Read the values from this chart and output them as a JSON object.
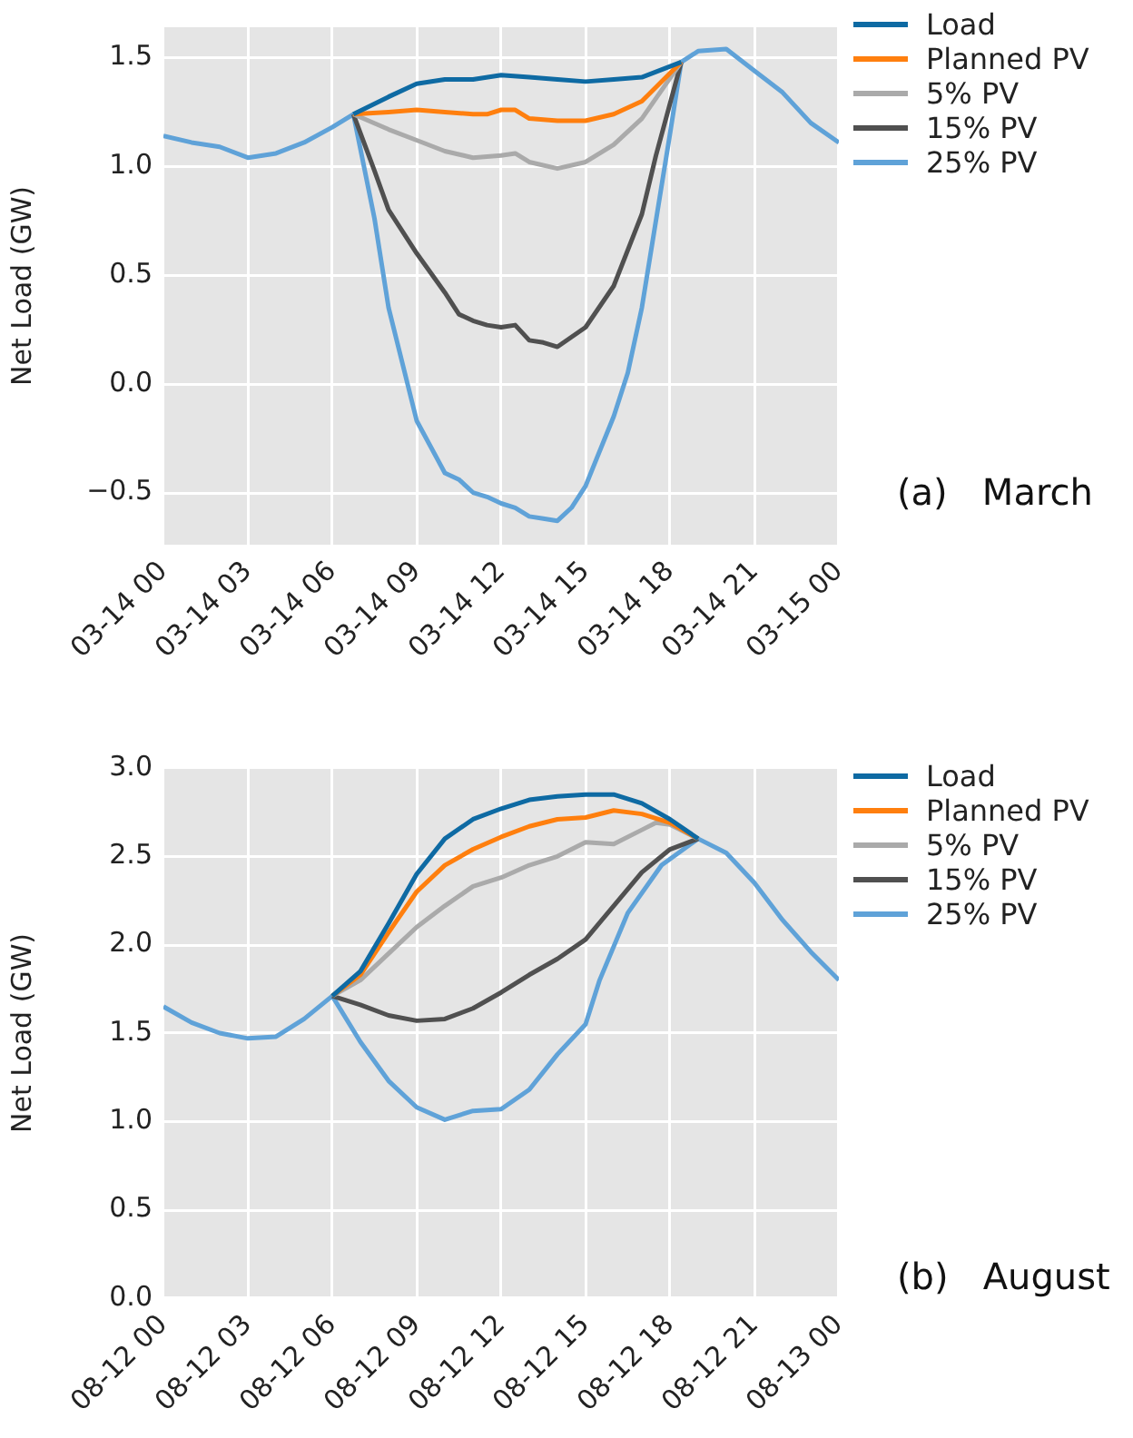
{
  "chart_data": [
    {
      "type": "line",
      "ylabel": "Net Load (GW)",
      "annotations": [
        "(a)   March"
      ],
      "legend": "top right",
      "grid": true,
      "xlim": [
        "--03-14T00:00",
        "--03-15T00:00"
      ],
      "xticks": [
        {
          "value": "--03-14T00:00",
          "label": "03-14 00"
        },
        {
          "value": "--03-14T03:00",
          "label": "03-14 03"
        },
        {
          "value": "--03-14T06:00",
          "label": "03-14 06"
        },
        {
          "value": "--03-14T09:00",
          "label": "03-14 09"
        },
        {
          "value": "--03-14T12:00",
          "label": "03-14 12"
        },
        {
          "value": "--03-14T15:00",
          "label": "03-14 15"
        },
        {
          "value": "--03-14T18:00",
          "label": "03-14 18"
        },
        {
          "value": "--03-14T21:00",
          "label": "03-14 21"
        },
        {
          "value": "--03-15T00:00",
          "label": "03-15 00"
        }
      ],
      "ylim": [
        -0.74,
        1.64
      ],
      "yticks": [
        {
          "value": -0.5,
          "label": "−0.5"
        },
        {
          "value": 0,
          "label": "0.0"
        },
        {
          "value": 0.5,
          "label": "0.5"
        },
        {
          "value": 1,
          "label": "1.0"
        },
        {
          "value": 1.5,
          "label": "1.5"
        }
      ],
      "series": [
        {
          "name": "Load",
          "color": "#0e6aa3",
          "x": [
            "--03-14T06:45",
            "--03-14T08:00",
            "--03-14T09:00",
            "--03-14T10:00",
            "--03-14T11:00",
            "--03-14T12:00",
            "--03-14T13:00",
            "--03-14T14:00",
            "--03-14T15:00",
            "--03-14T16:00",
            "--03-14T17:00",
            "--03-14T18:24"
          ],
          "values": [
            1.24,
            1.32,
            1.38,
            1.4,
            1.4,
            1.42,
            1.41,
            1.4,
            1.39,
            1.4,
            1.41,
            1.48
          ]
        },
        {
          "name": "Planned PV",
          "color": "#ff7f0e",
          "x": [
            "--03-14T06:45",
            "--03-14T08:00",
            "--03-14T09:00",
            "--03-14T10:00",
            "--03-14T11:00",
            "--03-14T11:30",
            "--03-14T12:00",
            "--03-14T12:30",
            "--03-14T13:00",
            "--03-14T14:00",
            "--03-14T15:00",
            "--03-14T16:00",
            "--03-14T17:00",
            "--03-14T18:24"
          ],
          "values": [
            1.24,
            1.25,
            1.26,
            1.25,
            1.24,
            1.24,
            1.26,
            1.26,
            1.22,
            1.21,
            1.21,
            1.24,
            1.3,
            1.48
          ]
        },
        {
          "name": "5% PV",
          "color": "#aaaaaa",
          "x": [
            "--03-14T06:45",
            "--03-14T08:00",
            "--03-14T09:00",
            "--03-14T10:00",
            "--03-14T11:00",
            "--03-14T12:00",
            "--03-14T12:30",
            "--03-14T13:00",
            "--03-14T14:00",
            "--03-14T15:00",
            "--03-14T16:00",
            "--03-14T17:00",
            "--03-14T18:24"
          ],
          "values": [
            1.24,
            1.17,
            1.12,
            1.07,
            1.04,
            1.05,
            1.06,
            1.02,
            0.99,
            1.02,
            1.1,
            1.22,
            1.48
          ]
        },
        {
          "name": "15% PV",
          "color": "#505050",
          "x": [
            "--03-14T06:45",
            "--03-14T07:30",
            "--03-14T08:00",
            "--03-14T09:00",
            "--03-14T10:00",
            "--03-14T10:30",
            "--03-14T11:00",
            "--03-14T11:30",
            "--03-14T12:00",
            "--03-14T12:30",
            "--03-14T13:00",
            "--03-14T13:30",
            "--03-14T14:00",
            "--03-14T15:00",
            "--03-14T16:00",
            "--03-14T17:00",
            "--03-14T17:30",
            "--03-14T18:24"
          ],
          "values": [
            1.24,
            0.98,
            0.8,
            0.6,
            0.42,
            0.32,
            0.29,
            0.27,
            0.26,
            0.27,
            0.2,
            0.19,
            0.17,
            0.26,
            0.45,
            0.78,
            1.05,
            1.48
          ]
        },
        {
          "name": "25% PV",
          "color": "#5fa2d8",
          "x": [
            "--03-14T00:00",
            "--03-14T01:00",
            "--03-14T02:00",
            "--03-14T03:00",
            "--03-14T04:00",
            "--03-14T05:00",
            "--03-14T06:00",
            "--03-14T06:45",
            "--03-14T07:30",
            "--03-14T08:00",
            "--03-14T09:00",
            "--03-14T10:00",
            "--03-14T10:30",
            "--03-14T11:00",
            "--03-14T11:30",
            "--03-14T12:00",
            "--03-14T12:30",
            "--03-14T13:00",
            "--03-14T13:30",
            "--03-14T14:00",
            "--03-14T14:30",
            "--03-14T15:00",
            "--03-14T16:00",
            "--03-14T16:30",
            "--03-14T17:00",
            "--03-14T17:30",
            "--03-14T18:00",
            "--03-14T18:24",
            "--03-14T19:00",
            "--03-14T20:00",
            "--03-14T21:00",
            "--03-14T22:00",
            "--03-14T23:00",
            "--03-15T00:00"
          ],
          "values": [
            1.14,
            1.11,
            1.09,
            1.04,
            1.06,
            1.11,
            1.18,
            1.24,
            0.76,
            0.35,
            -0.17,
            -0.41,
            -0.44,
            -0.5,
            -0.52,
            -0.55,
            -0.57,
            -0.61,
            -0.62,
            -0.63,
            -0.57,
            -0.47,
            -0.15,
            0.05,
            0.35,
            0.75,
            1.15,
            1.48,
            1.53,
            1.54,
            1.44,
            1.34,
            1.2,
            1.11
          ]
        }
      ]
    },
    {
      "type": "line",
      "ylabel": "Net Load (GW)",
      "annotations": [
        "(b)   August"
      ],
      "legend": "top right",
      "grid": true,
      "xlim": [
        "--08-12T00:00",
        "--08-13T00:00"
      ],
      "xticks": [
        {
          "value": "--08-12T00:00",
          "label": "08-12 00"
        },
        {
          "value": "--08-12T03:00",
          "label": "08-12 03"
        },
        {
          "value": "--08-12T06:00",
          "label": "08-12 06"
        },
        {
          "value": "--08-12T09:00",
          "label": "08-12 09"
        },
        {
          "value": "--08-12T12:00",
          "label": "08-12 12"
        },
        {
          "value": "--08-12T15:00",
          "label": "08-12 15"
        },
        {
          "value": "--08-12T18:00",
          "label": "08-12 18"
        },
        {
          "value": "--08-12T21:00",
          "label": "08-12 21"
        },
        {
          "value": "--08-13T00:00",
          "label": "08-13 00"
        }
      ],
      "ylim": [
        0,
        3
      ],
      "yticks": [
        {
          "value": 0,
          "label": "0.0"
        },
        {
          "value": 0.5,
          "label": "0.5"
        },
        {
          "value": 1,
          "label": "1.0"
        },
        {
          "value": 1.5,
          "label": "1.5"
        },
        {
          "value": 2,
          "label": "2.0"
        },
        {
          "value": 2.5,
          "label": "2.5"
        },
        {
          "value": 3,
          "label": "3.0"
        }
      ],
      "series": [
        {
          "name": "Load",
          "color": "#0e6aa3",
          "x": [
            "--08-12T06:00",
            "--08-12T07:00",
            "--08-12T08:00",
            "--08-12T09:00",
            "--08-12T10:00",
            "--08-12T11:00",
            "--08-12T12:00",
            "--08-12T13:00",
            "--08-12T14:00",
            "--08-12T15:00",
            "--08-12T16:00",
            "--08-12T17:00",
            "--08-12T18:00",
            "--08-12T19:00"
          ],
          "values": [
            1.71,
            1.85,
            2.12,
            2.4,
            2.6,
            2.71,
            2.77,
            2.82,
            2.84,
            2.85,
            2.85,
            2.8,
            2.71,
            2.6
          ]
        },
        {
          "name": "Planned PV",
          "color": "#ff7f0e",
          "x": [
            "--08-12T06:00",
            "--08-12T07:00",
            "--08-12T08:00",
            "--08-12T09:00",
            "--08-12T10:00",
            "--08-12T11:00",
            "--08-12T12:00",
            "--08-12T13:00",
            "--08-12T14:00",
            "--08-12T15:00",
            "--08-12T16:00",
            "--08-12T17:00",
            "--08-12T18:00",
            "--08-12T19:00"
          ],
          "values": [
            1.71,
            1.83,
            2.07,
            2.3,
            2.45,
            2.54,
            2.61,
            2.67,
            2.71,
            2.72,
            2.76,
            2.74,
            2.69,
            2.6
          ]
        },
        {
          "name": "5% PV",
          "color": "#aaaaaa",
          "x": [
            "--08-12T06:00",
            "--08-12T07:00",
            "--08-12T08:00",
            "--08-12T09:00",
            "--08-12T10:00",
            "--08-12T11:00",
            "--08-12T12:00",
            "--08-12T13:00",
            "--08-12T14:00",
            "--08-12T15:00",
            "--08-12T16:00",
            "--08-12T17:00",
            "--08-12T17:30",
            "--08-12T18:00",
            "--08-12T19:00"
          ],
          "values": [
            1.71,
            1.8,
            1.95,
            2.1,
            2.22,
            2.33,
            2.38,
            2.45,
            2.5,
            2.58,
            2.57,
            2.65,
            2.69,
            2.68,
            2.6
          ]
        },
        {
          "name": "15% PV",
          "color": "#505050",
          "x": [
            "--08-12T06:00",
            "--08-12T07:00",
            "--08-12T08:00",
            "--08-12T09:00",
            "--08-12T10:00",
            "--08-12T11:00",
            "--08-12T12:00",
            "--08-12T13:00",
            "--08-12T14:00",
            "--08-12T15:00",
            "--08-12T16:00",
            "--08-12T17:00",
            "--08-12T18:00",
            "--08-12T19:00"
          ],
          "values": [
            1.71,
            1.66,
            1.6,
            1.57,
            1.58,
            1.64,
            1.73,
            1.83,
            1.92,
            2.03,
            2.22,
            2.41,
            2.54,
            2.6
          ]
        },
        {
          "name": "25% PV",
          "color": "#5fa2d8",
          "x": [
            "--08-12T00:00",
            "--08-12T01:00",
            "--08-12T02:00",
            "--08-12T03:00",
            "--08-12T04:00",
            "--08-12T05:00",
            "--08-12T06:00",
            "--08-12T07:00",
            "--08-12T08:00",
            "--08-12T09:00",
            "--08-12T10:00",
            "--08-12T11:00",
            "--08-12T12:00",
            "--08-12T13:00",
            "--08-12T14:00",
            "--08-12T15:00",
            "--08-12T15:30",
            "--08-12T16:30",
            "--08-12T17:42",
            "--08-12T19:00",
            "--08-12T20:00",
            "--08-12T21:00",
            "--08-12T22:00",
            "--08-12T23:00",
            "--08-13T00:00"
          ],
          "values": [
            1.65,
            1.56,
            1.5,
            1.47,
            1.48,
            1.58,
            1.71,
            1.45,
            1.23,
            1.08,
            1.01,
            1.06,
            1.07,
            1.18,
            1.38,
            1.55,
            1.8,
            2.18,
            2.45,
            2.6,
            2.52,
            2.35,
            2.14,
            1.96,
            1.8
          ]
        }
      ]
    }
  ]
}
